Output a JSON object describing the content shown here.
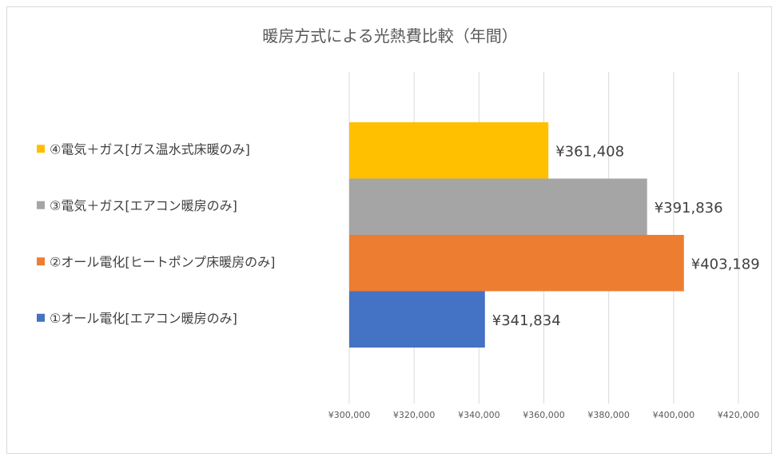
{
  "chart_data": {
    "type": "bar",
    "orientation": "horizontal",
    "title": "暖房方式による光熱費比較（年間）",
    "categories": [
      "①オール電化[エアコン暖房のみ]",
      "②オール電化[ヒートポンプ床暖房のみ]",
      "③電気＋ガス[エアコン暖房のみ]",
      "④電気＋ガス[ガス温水式床暖のみ]"
    ],
    "values": [
      341834,
      403189,
      391836,
      361408
    ],
    "data_labels": [
      "¥341,834",
      "¥403,189",
      "¥391,836",
      "¥361,408"
    ],
    "colors": [
      "#4472C4",
      "#ED7D31",
      "#A5A5A5",
      "#FFC000"
    ],
    "xlim": [
      300000,
      420000
    ],
    "x_ticks": [
      300000,
      320000,
      340000,
      360000,
      380000,
      400000,
      420000
    ],
    "x_tick_labels": [
      "¥300,000",
      "¥320,000",
      "¥340,000",
      "¥360,000",
      "¥380,000",
      "¥400,000",
      "¥420,000"
    ],
    "legend_marker_colors": [
      "#4472C4",
      "#ED7D31",
      "#A5A5A5",
      "#FFC000"
    ],
    "grid": true
  }
}
